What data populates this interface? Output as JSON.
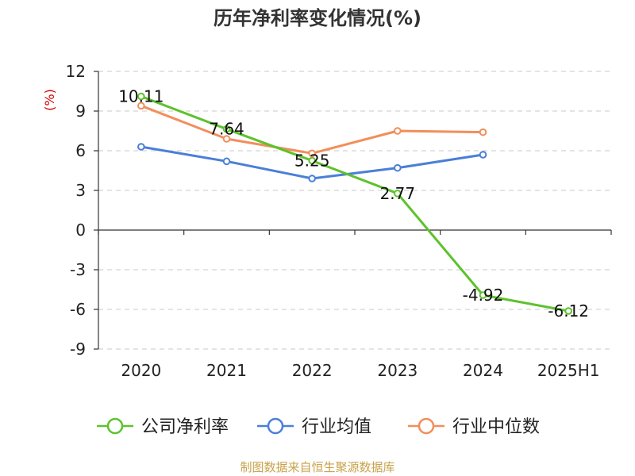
{
  "chart_data": {
    "type": "line",
    "title": "历年净利率变化情况(%)",
    "ylabel": "(%)",
    "ylabel_color": "#d40000",
    "categories": [
      "2020",
      "2021",
      "2022",
      "2023",
      "2024",
      "2025H1"
    ],
    "yticks": [
      "12",
      "9",
      "6",
      "3",
      "0",
      "-3",
      "-6",
      "-9"
    ],
    "ylim": [
      -9,
      12
    ],
    "grid": true,
    "legend_position": "bottom",
    "series": [
      {
        "name": "公司净利率",
        "color": "#5ec22d",
        "values": [
          10.11,
          7.64,
          5.25,
          2.77,
          -4.92,
          -6.12
        ],
        "labels": [
          "10.11",
          "7.64",
          "5.25",
          "2.77",
          "-4.92",
          "-6.12"
        ]
      },
      {
        "name": "行业均值",
        "color": "#4a7fd8",
        "values": [
          6.3,
          5.2,
          3.9,
          4.7,
          5.7,
          null
        ]
      },
      {
        "name": "行业中位数",
        "color": "#f28e5a",
        "values": [
          9.4,
          6.9,
          5.8,
          7.5,
          7.4,
          null
        ]
      }
    ]
  },
  "source": {
    "text": "制图数据来自恒生聚源数据库",
    "color": "#c8a24a"
  }
}
